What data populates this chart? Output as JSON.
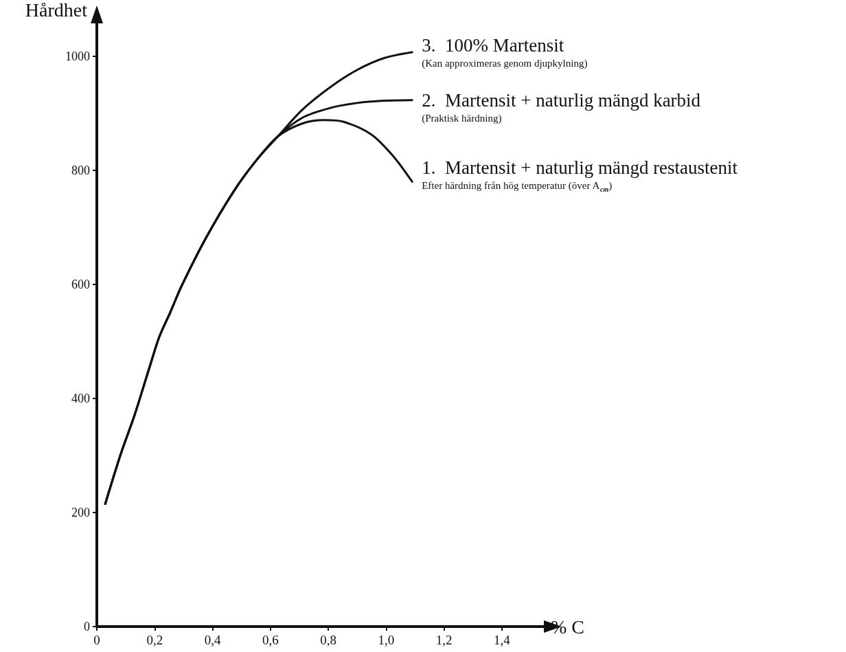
{
  "chart_data": {
    "type": "line",
    "xlabel": "% C",
    "ylabel": "Hårdhet",
    "xlim": [
      0,
      1.55
    ],
    "ylim": [
      0,
      1060
    ],
    "xticks": [
      0,
      {
        "value": 0.2,
        "label": "0,2"
      },
      {
        "value": 0.4,
        "label": "0,4"
      },
      {
        "value": 0.6,
        "label": "0,6"
      },
      {
        "value": 0.8,
        "label": "0,8"
      },
      {
        "value": 1.0,
        "label": "1,0"
      },
      {
        "value": 1.2,
        "label": "1,2"
      },
      {
        "value": 1.4,
        "label": "1,4"
      }
    ],
    "yticks": [
      0,
      200,
      400,
      600,
      800,
      1000
    ],
    "grid": false,
    "legend": false,
    "marker": "none",
    "line_style": "solid",
    "series": [
      {
        "name": "3.  100% Martensit\n(Kan approximeras genom djupkylning)",
        "color": "#111111",
        "x": [
          0.029,
          0.083,
          0.13,
          0.183,
          0.216,
          0.254,
          0.292,
          0.378,
          0.473,
          0.549,
          0.625,
          0.71,
          0.805,
          0.9,
          0.995,
          1.09
        ],
        "values": [
          215,
          303,
          370,
          456,
          508,
          551,
          596,
          682,
          763,
          816,
          859,
          906,
          945,
          976,
          997,
          1007
        ]
      },
      {
        "name": "2.  Martensit + naturlig mängd karbid\n(Praktisk härdning)",
        "color": "#111111",
        "x": [
          0.029,
          0.083,
          0.13,
          0.183,
          0.216,
          0.254,
          0.292,
          0.378,
          0.473,
          0.549,
          0.625,
          0.71,
          0.805,
          0.9,
          0.995,
          1.09
        ],
        "values": [
          215,
          303,
          370,
          456,
          508,
          551,
          596,
          682,
          763,
          816,
          859,
          892,
          909,
          918,
          922,
          923
        ]
      },
      {
        "name": "1.  Martensit + naturlig mängd restaustenit\nEfter härdning från hög temperatur (över A$_{cm}$)",
        "color": "#111111",
        "x": [
          0.029,
          0.083,
          0.13,
          0.183,
          0.216,
          0.254,
          0.292,
          0.378,
          0.473,
          0.549,
          0.625,
          0.71,
          0.786,
          0.853,
          0.948,
          1.024,
          1.09
        ],
        "values": [
          215,
          303,
          370,
          456,
          508,
          551,
          596,
          682,
          763,
          816,
          859,
          882,
          888,
          885,
          863,
          825,
          780
        ]
      }
    ]
  }
}
